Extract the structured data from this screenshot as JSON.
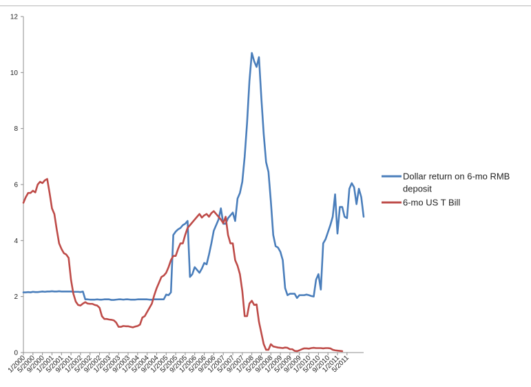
{
  "chart_data": {
    "type": "line",
    "title": "",
    "xlabel": "",
    "ylabel": "",
    "ylim": [
      0,
      12
    ],
    "y_ticks": [
      "0",
      "2",
      "4",
      "6",
      "8",
      "10",
      "12"
    ],
    "x_start": "1/2000",
    "x_step_months": 4,
    "x_tick_labels": [
      "1/2000",
      "5/2000",
      "9/2000",
      "1/2001",
      "5/2001",
      "9/2001",
      "1/2002",
      "5/2002",
      "9/2002",
      "1/2003",
      "5/2003",
      "9/2003",
      "1/2004",
      "5/2004",
      "9/2004",
      "1/2005",
      "5/2005",
      "9/2005",
      "1/2006",
      "5/2006",
      "9/2006",
      "1/2007",
      "5/2007",
      "9/2007",
      "1/2008",
      "5/2008",
      "9/2008",
      "1/2009",
      "5/2009",
      "9/2009",
      "1/2010",
      "5/2010",
      "9/2010",
      "1/2011",
      "5/2011"
    ],
    "grid": false,
    "legend_position": "right",
    "series": [
      {
        "name": "Dollar return on 6-mo RMB deposit",
        "color": "#4a7ebb",
        "values": [
          2.15,
          2.15,
          2.16,
          2.15,
          2.17,
          2.16,
          2.16,
          2.17,
          2.18,
          2.17,
          2.18,
          2.18,
          2.19,
          2.18,
          2.18,
          2.19,
          2.18,
          2.18,
          2.18,
          2.18,
          2.18,
          2.17,
          2.17,
          2.17,
          2.16,
          2.18,
          1.9,
          1.9,
          1.89,
          1.89,
          1.89,
          1.9,
          1.89,
          1.89,
          1.9,
          1.9,
          1.9,
          1.88,
          1.88,
          1.89,
          1.9,
          1.9,
          1.89,
          1.9,
          1.9,
          1.89,
          1.89,
          1.89,
          1.9,
          1.9,
          1.9,
          1.9,
          1.9,
          1.89,
          1.89,
          1.9,
          1.9,
          1.9,
          1.9,
          1.9,
          2.07,
          2.05,
          2.15,
          4.2,
          4.32,
          4.4,
          4.45,
          4.55,
          4.6,
          4.7,
          2.7,
          2.8,
          3.05,
          2.95,
          2.85,
          3.0,
          3.2,
          3.15,
          3.5,
          3.9,
          4.35,
          4.55,
          4.75,
          5.15,
          4.6,
          4.6,
          4.8,
          4.9,
          5.0,
          4.7,
          5.5,
          5.7,
          6.1,
          7.0,
          8.2,
          9.7,
          10.7,
          10.4,
          10.2,
          10.55,
          9.1,
          7.8,
          6.8,
          6.45,
          5.4,
          4.2,
          3.8,
          3.75,
          3.6,
          3.3,
          2.3,
          2.05,
          2.1,
          2.1,
          2.1,
          1.95,
          2.05,
          2.05,
          2.05,
          2.07,
          2.05,
          2.02,
          2.0,
          2.6,
          2.8,
          2.25,
          3.9,
          4.05,
          4.3,
          4.55,
          4.85,
          5.65,
          4.25,
          5.2,
          5.2,
          4.85,
          4.8,
          5.85,
          6.05,
          5.9,
          5.3,
          5.85,
          5.55,
          4.85
        ]
      },
      {
        "name": "6-mo US  T Bill",
        "color": "#be4b48",
        "values": [
          5.35,
          5.55,
          5.7,
          5.7,
          5.78,
          5.72,
          6.0,
          6.1,
          6.05,
          6.15,
          6.2,
          5.7,
          5.15,
          4.95,
          4.4,
          3.9,
          3.7,
          3.55,
          3.5,
          3.38,
          2.6,
          2.1,
          1.82,
          1.7,
          1.68,
          1.75,
          1.8,
          1.75,
          1.74,
          1.74,
          1.7,
          1.68,
          1.6,
          1.3,
          1.2,
          1.2,
          1.18,
          1.17,
          1.15,
          1.07,
          0.92,
          0.92,
          0.95,
          0.94,
          0.94,
          0.92,
          0.9,
          0.93,
          0.95,
          1.0,
          1.25,
          1.3,
          1.45,
          1.6,
          1.75,
          2.05,
          2.3,
          2.5,
          2.7,
          2.75,
          2.85,
          3.05,
          3.3,
          3.45,
          3.45,
          3.7,
          3.9,
          3.9,
          4.2,
          4.45,
          4.55,
          4.65,
          4.75,
          4.85,
          4.95,
          4.82,
          4.9,
          4.95,
          4.85,
          4.98,
          5.05,
          4.95,
          4.85,
          4.75,
          4.62,
          4.85,
          4.2,
          3.9,
          3.9,
          3.3,
          3.1,
          2.8,
          2.2,
          1.3,
          1.3,
          1.75,
          1.85,
          1.7,
          1.72,
          1.1,
          0.7,
          0.3,
          0.1,
          0.1,
          0.3,
          0.22,
          0.2,
          0.18,
          0.17,
          0.16,
          0.18,
          0.17,
          0.12,
          0.12,
          0.06,
          0.05,
          0.08,
          0.12,
          0.15,
          0.15,
          0.14,
          0.16,
          0.17,
          0.16,
          0.16,
          0.16,
          0.15,
          0.16,
          0.16,
          0.15,
          0.1,
          0.08,
          0.07,
          0.06,
          0.05
        ]
      }
    ]
  }
}
